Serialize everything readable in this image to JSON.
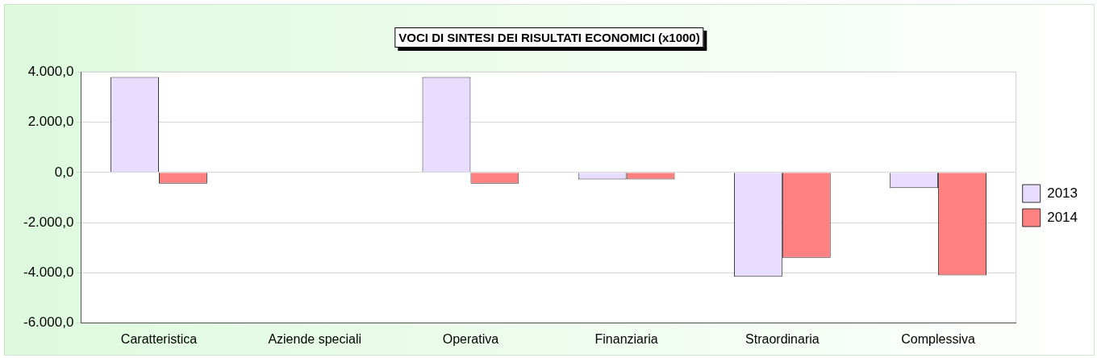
{
  "chart_data": {
    "type": "bar",
    "title": "VOCI DI SINTESI DEI RISULTATI ECONOMICI (x1000)",
    "categories": [
      "Caratteristica",
      "Aziende speciali",
      "Operativa",
      "Finanziaria",
      "Straordinaria",
      "Complessiva"
    ],
    "series": [
      {
        "name": "2013",
        "color": "#e8dcff",
        "values": [
          3800,
          0,
          3800,
          -280,
          -4150,
          -620
        ]
      },
      {
        "name": "2014",
        "color": "#ff8080",
        "values": [
          -450,
          0,
          -450,
          -280,
          -3400,
          -4100
        ]
      }
    ],
    "ylim": [
      -6000,
      4000
    ],
    "yticks": [
      {
        "value": -6000,
        "label": "-6.000,0"
      },
      {
        "value": -4000,
        "label": "-4.000,0"
      },
      {
        "value": -2000,
        "label": "-2.000,0"
      },
      {
        "value": 0,
        "label": "0,0"
      },
      {
        "value": 2000,
        "label": "2.000,0"
      },
      {
        "value": 4000,
        "label": "4.000,0"
      }
    ],
    "grid": "y",
    "legend": "right"
  }
}
